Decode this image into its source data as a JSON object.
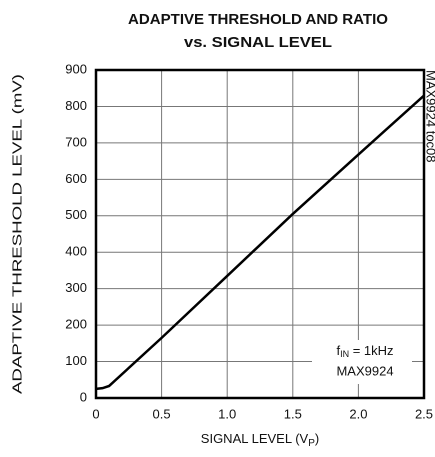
{
  "chart_data": {
    "type": "line",
    "title": [
      "ADAPTIVE THRESHOLD AND RATIO",
      "vs. SIGNAL LEVEL"
    ],
    "xlabel": {
      "text": "SIGNAL LEVEL (V",
      "sub": "P",
      "tail": ")"
    },
    "ylabel": "ADAPTIVE THRESHOLD LEVEL (mV)",
    "annotation": {
      "line1": {
        "text": "f",
        "sub": "IN",
        "tail": " = 1kHz"
      },
      "line2": "MAX9924"
    },
    "side_note": "MAX9924 toc08",
    "x": [
      0,
      0.05,
      0.1,
      0.5,
      1.0,
      1.5,
      2.0,
      2.5
    ],
    "values": [
      25,
      27,
      33,
      165,
      335,
      505,
      668,
      830
    ],
    "color": "#000000",
    "xlim": [
      0,
      2.5
    ],
    "xticks": [
      0,
      0.5,
      {
        "value": 1,
        "label": "1.0"
      },
      1.5,
      {
        "value": 2,
        "label": "2.0"
      },
      2.5
    ],
    "ylim": [
      0,
      900
    ],
    "yticks": [
      0,
      100,
      200,
      300,
      400,
      500,
      600,
      700,
      800,
      900
    ],
    "grid": true
  }
}
